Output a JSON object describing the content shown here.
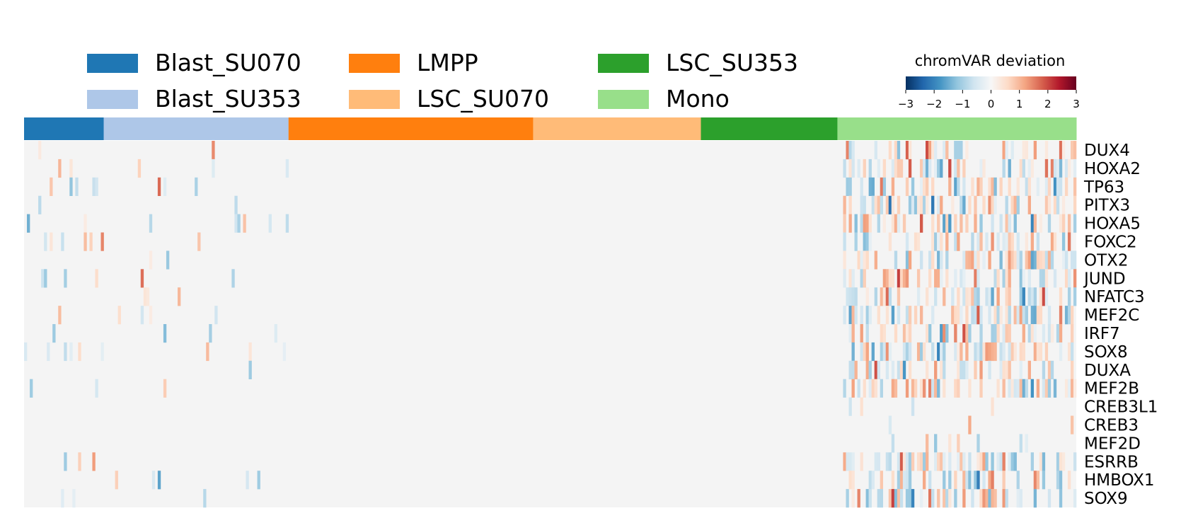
{
  "chart_data": {
    "type": "heatmap",
    "title": "",
    "legend": {
      "placement": "top",
      "entries": [
        {
          "name": "Blast_SU070",
          "color": "#1f77b4"
        },
        {
          "name": "Blast_SU353",
          "color": "#aec7e8"
        },
        {
          "name": "LMPP",
          "color": "#ff7f0e"
        },
        {
          "name": "LSC_SU070",
          "color": "#ffbb78"
        },
        {
          "name": "LSC_SU353",
          "color": "#2ca02c"
        },
        {
          "name": "Mono",
          "color": "#98df8a"
        }
      ]
    },
    "colorbar": {
      "label": "chromVAR deviation",
      "range": [
        -3,
        3
      ],
      "ticks": [
        "−3",
        "−2",
        "−1",
        "0",
        "1",
        "2",
        "3"
      ],
      "colormap": "RdBu_r"
    },
    "column_groups": [
      {
        "name": "Blast_SU070",
        "n_cells": 28
      },
      {
        "name": "Blast_SU353",
        "n_cells": 65
      },
      {
        "name": "LMPP",
        "n_cells": 86
      },
      {
        "name": "LSC_SU070",
        "n_cells": 59
      },
      {
        "name": "LSC_SU353",
        "n_cells": 48
      },
      {
        "name": "Mono",
        "n_cells": 84
      }
    ],
    "rows": [
      "DUX4",
      "HOXA2",
      "TP63",
      "PITX3",
      "HOXA5",
      "FOXC2",
      "OTX2",
      "JUND",
      "NFATC3",
      "MEF2C",
      "IRF7",
      "SOX8",
      "DUXA",
      "MEF2B",
      "CREB3L1",
      "CREB3",
      "MEF2D",
      "ESRRB",
      "HMBOX1",
      "SOX9"
    ],
    "blank_value_color": "#f4f4f4"
  }
}
